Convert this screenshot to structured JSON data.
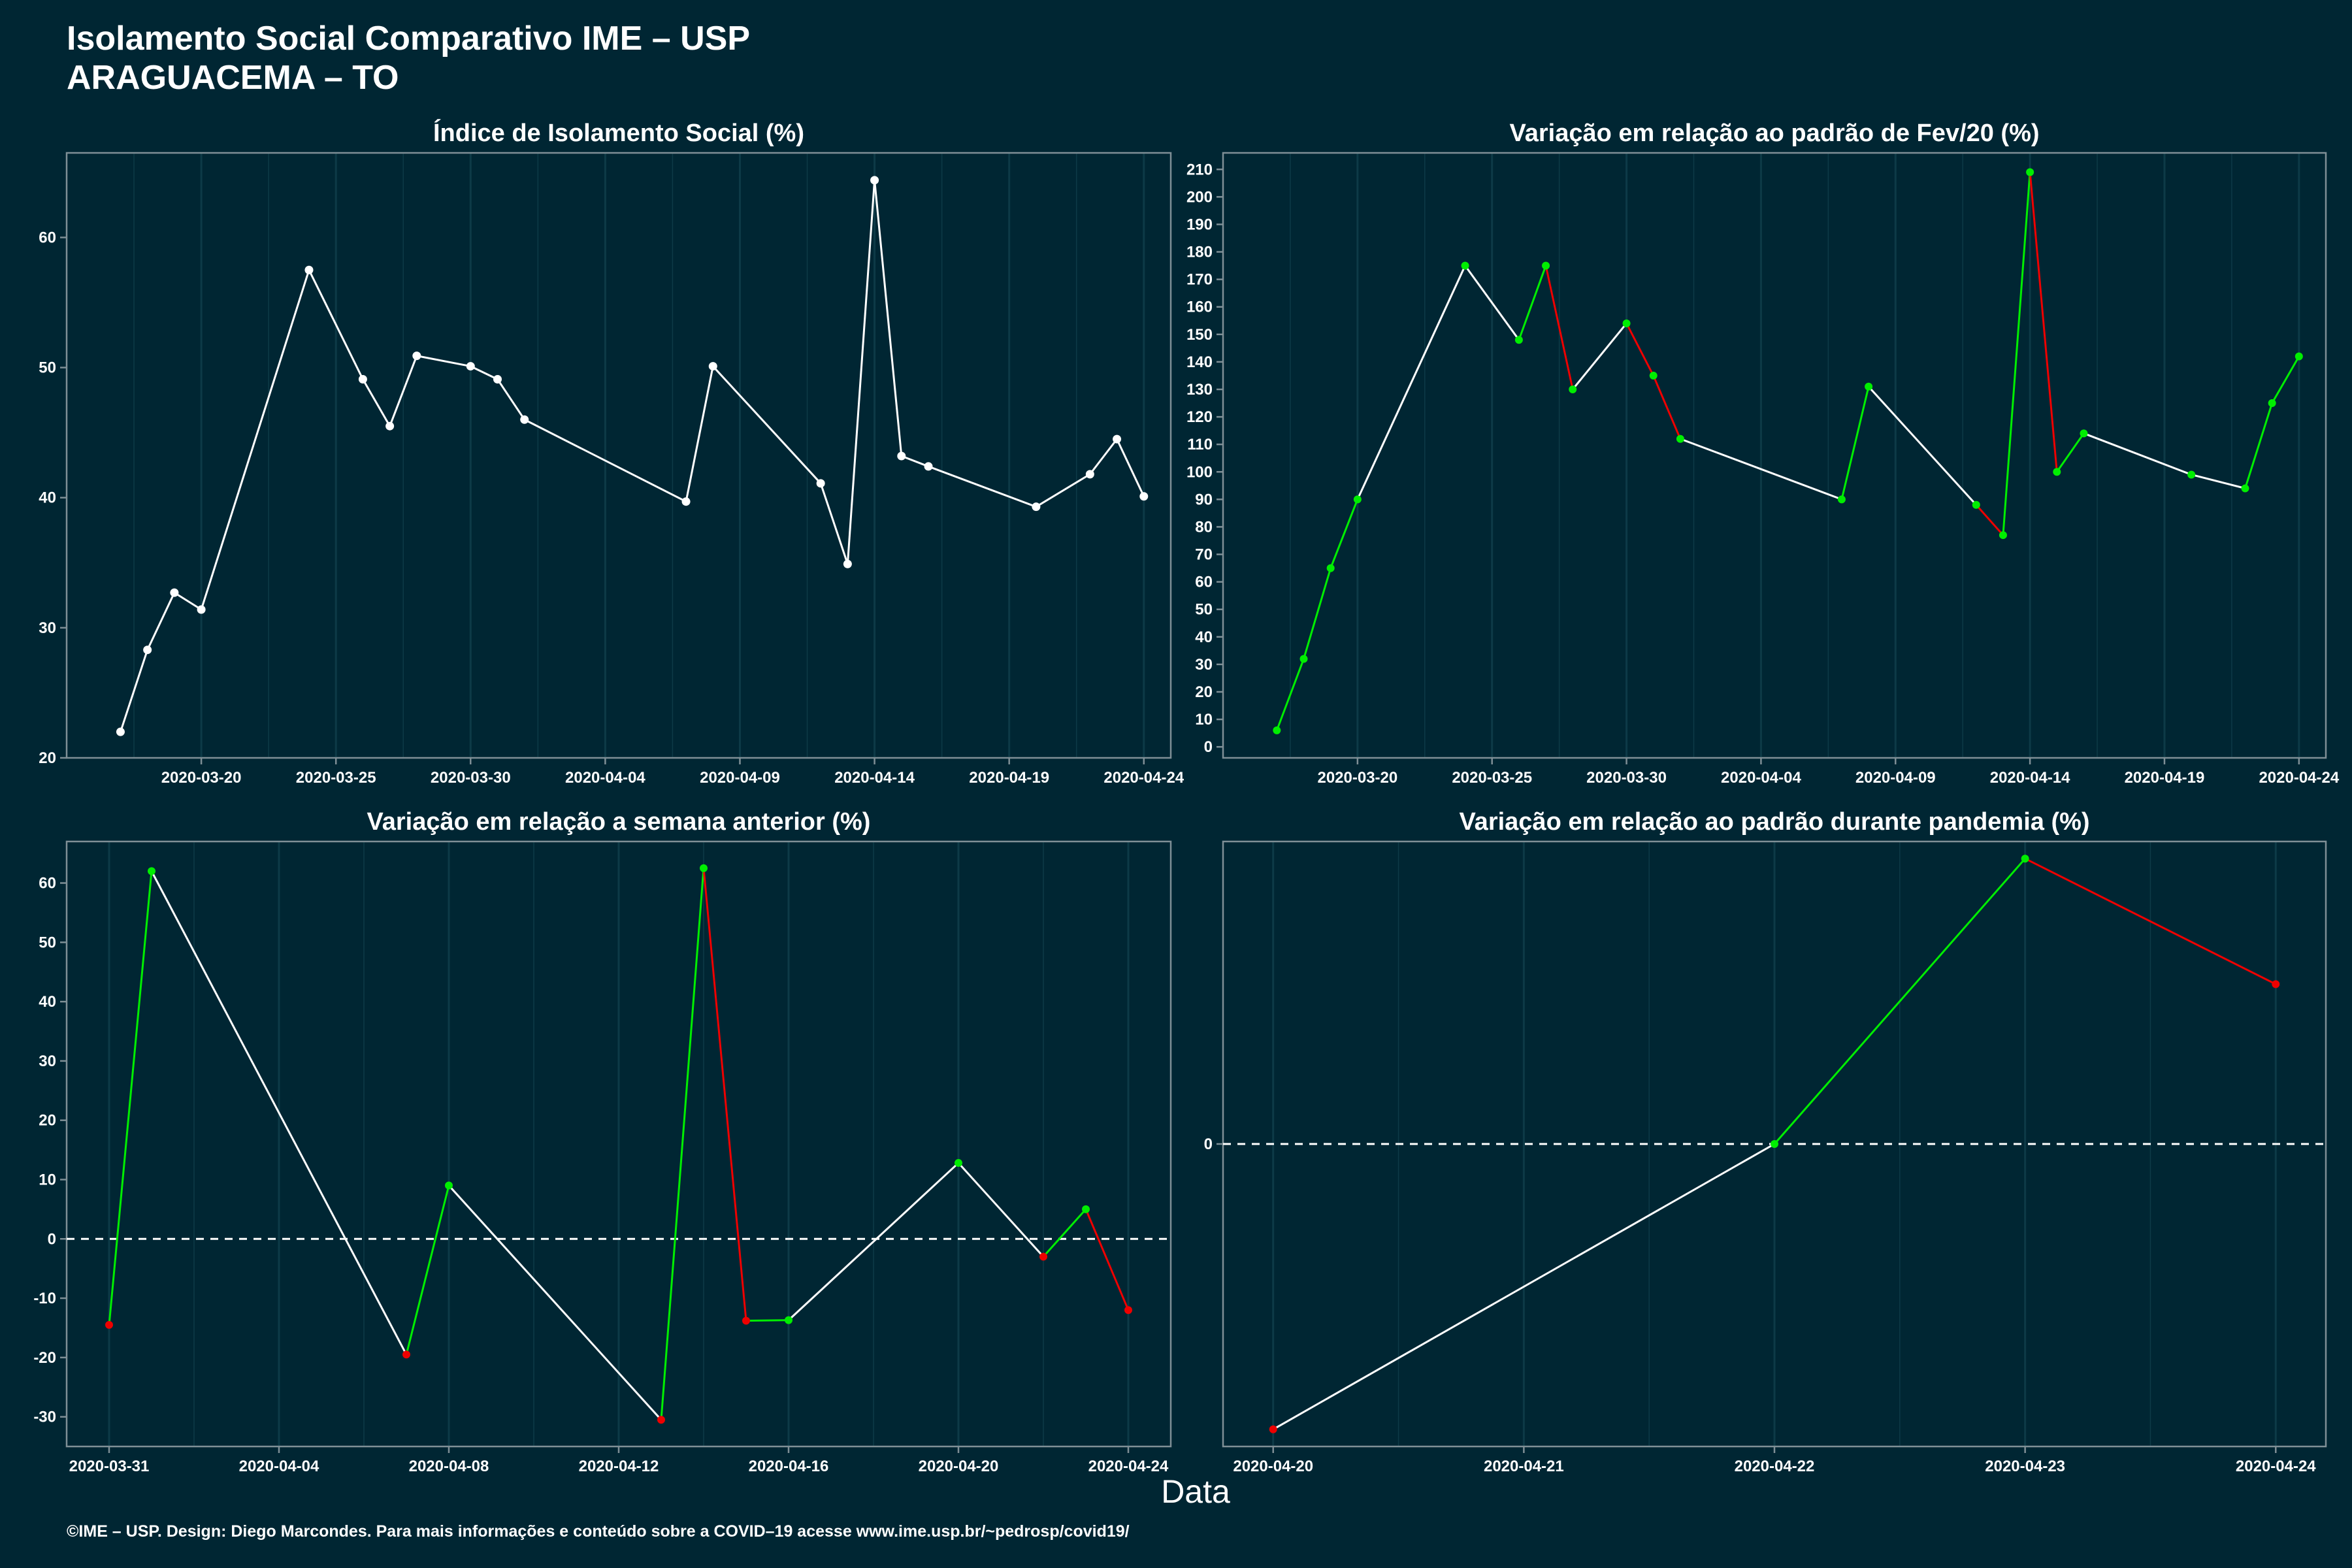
{
  "header": {
    "title_line1": "Isolamento Social Comparativo IME – USP",
    "title_line2": "ARAGUACEMA – TO"
  },
  "xlabel": "Data",
  "footer": "©IME – USP. Design: Diego Marcondes. Para mais informações e conteúdo sobre a COVID–19 acesse www.ime.usp.br/~pedrosp/covid19/",
  "colors": {
    "background": "#002633",
    "line": "#ffffff",
    "increase": "#00ee00",
    "decrease": "#ee0000",
    "axis_border": "#7f8f96",
    "grid": "#0d3a47"
  },
  "chart_data": [
    {
      "type": "line",
      "title": "Índice de Isolamento Social (%)",
      "x_ticks": [
        "2020-03-20",
        "2020-03-25",
        "2020-03-30",
        "2020-04-04",
        "2020-04-09",
        "2020-04-14",
        "2020-04-19",
        "2020-04-24"
      ],
      "y_ticks": [
        20,
        30,
        40,
        50,
        60
      ],
      "xlim": [
        "2020-03-15",
        "2020-04-25"
      ],
      "ylim": [
        20,
        66.5
      ],
      "grid": "vertical",
      "x": [
        "2020-03-17",
        "2020-03-18",
        "2020-03-19",
        "2020-03-20",
        "2020-03-24",
        "2020-03-26",
        "2020-03-27",
        "2020-03-28",
        "2020-03-30",
        "2020-03-31",
        "2020-04-01",
        "2020-04-07",
        "2020-04-08",
        "2020-04-12",
        "2020-04-13",
        "2020-04-14",
        "2020-04-15",
        "2020-04-16",
        "2020-04-20",
        "2020-04-22",
        "2020-04-23",
        "2020-04-24"
      ],
      "values": [
        22.0,
        28.3,
        32.7,
        31.4,
        57.5,
        49.1,
        45.5,
        50.9,
        50.1,
        49.1,
        46.0,
        39.7,
        50.1,
        41.1,
        34.9,
        64.4,
        43.2,
        42.4,
        39.3,
        41.8,
        44.5,
        40.1
      ],
      "point_colors": [
        "#ffffff"
      ]
    },
    {
      "type": "line",
      "title": "Variação em relação ao padrão de Fev/20 (%)",
      "x_ticks": [
        "2020-03-20",
        "2020-03-25",
        "2020-03-30",
        "2020-04-04",
        "2020-04-09",
        "2020-04-14",
        "2020-04-19",
        "2020-04-24"
      ],
      "y_ticks": [
        0,
        10,
        20,
        30,
        40,
        50,
        60,
        70,
        80,
        90,
        100,
        110,
        120,
        130,
        140,
        150,
        160,
        170,
        180,
        190,
        200,
        210
      ],
      "xlim": [
        "2020-03-15",
        "2020-04-25"
      ],
      "ylim": [
        -4,
        216
      ],
      "grid": "vertical",
      "x": [
        "2020-03-17",
        "2020-03-18",
        "2020-03-19",
        "2020-03-20",
        "2020-03-24",
        "2020-03-26",
        "2020-03-27",
        "2020-03-28",
        "2020-03-30",
        "2020-03-31",
        "2020-04-01",
        "2020-04-07",
        "2020-04-08",
        "2020-04-12",
        "2020-04-13",
        "2020-04-14",
        "2020-04-15",
        "2020-04-16",
        "2020-04-20",
        "2020-04-22",
        "2020-04-23",
        "2020-04-24"
      ],
      "values": [
        6,
        32,
        65,
        90,
        175,
        148,
        175,
        130,
        154,
        135,
        112,
        90,
        131,
        88,
        77,
        209,
        100,
        114,
        99,
        94,
        125,
        142
      ]
    },
    {
      "type": "line",
      "title": "Variação em relação a semana anterior (%)",
      "x_ticks": [
        "2020-03-31",
        "2020-04-04",
        "2020-04-08",
        "2020-04-12",
        "2020-04-16",
        "2020-04-20",
        "2020-04-24"
      ],
      "y_ticks": [
        -30,
        -20,
        -10,
        0,
        10,
        20,
        30,
        40,
        50,
        60
      ],
      "xlim": [
        "2020-03-30",
        "2020-04-25"
      ],
      "ylim": [
        -35,
        67
      ],
      "grid": "vertical",
      "reference_line": 0,
      "x": [
        "2020-03-31",
        "2020-04-01",
        "2020-04-07",
        "2020-04-08",
        "2020-04-13",
        "2020-04-14",
        "2020-04-15",
        "2020-04-16",
        "2020-04-20",
        "2020-04-22",
        "2020-04-23",
        "2020-04-24"
      ],
      "values": [
        -14.5,
        62.0,
        -19.5,
        9.0,
        -30.5,
        62.5,
        -13.8,
        -13.7,
        12.8,
        -3.0,
        5.0,
        -12.0
      ]
    },
    {
      "type": "line",
      "title": "Variação em relação ao padrão durante pandemia (%)",
      "x_ticks": [
        "2020-04-20",
        "2020-04-21",
        "2020-04-22",
        "2020-04-23",
        "2020-04-24"
      ],
      "y_ticks": [
        0
      ],
      "xlim": [
        "2020-04-19.8",
        "2020-04-24.2"
      ],
      "ylim": [
        -10.6,
        10.6
      ],
      "grid": "vertical",
      "reference_line": 0,
      "x": [
        "2020-04-20",
        "2020-04-22",
        "2020-04-23",
        "2020-04-24"
      ],
      "values": [
        -10,
        0,
        10,
        5.6
      ]
    }
  ]
}
